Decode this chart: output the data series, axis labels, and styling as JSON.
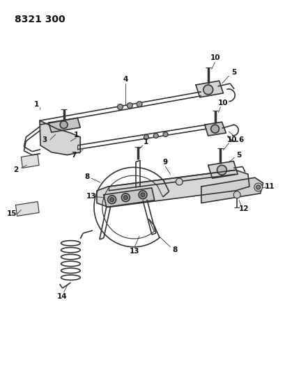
{
  "title": "8321 300",
  "bg_color": "#ffffff",
  "line_color": "#333333",
  "text_color": "#111111",
  "title_fontsize": 10,
  "label_fontsize": 7.5,
  "figsize": [
    4.1,
    5.33
  ],
  "dpi": 100
}
